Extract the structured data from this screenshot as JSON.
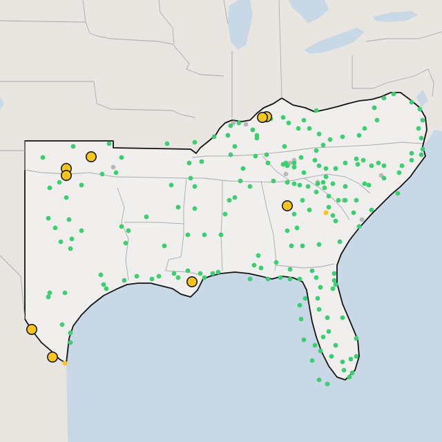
{
  "map": {
    "colors": {
      "land": "#e9e6e2",
      "water": "#c9d8e6",
      "region_fill": "#f0efed",
      "region_outline": "#111111",
      "state_lines": "#a9a9a9",
      "good": "#3ccf72",
      "elevated": "#f6c51f",
      "missing": "#b8b8b8",
      "elevated_outline": "#1a1a1a"
    },
    "markers": {
      "green_icon": "green-dot-icon",
      "gray_icon": "gray-dot-icon",
      "yellow_small_icon": "yellow-dot-icon",
      "yellow_large_icon": "yellow-circle-icon"
    }
  }
}
